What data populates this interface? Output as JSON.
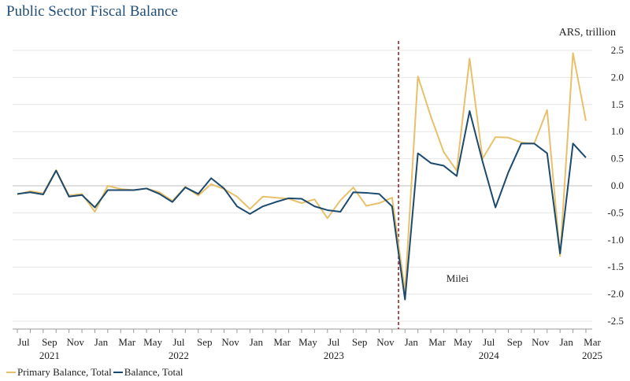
{
  "chart_data": {
    "type": "line",
    "title": "Public Sector Fiscal Balance",
    "ylabel": "ARS, trillion",
    "ylim": [
      -2.5,
      2.5
    ],
    "yticks": [
      "2.5",
      "2.0",
      "1.5",
      "1.0",
      "0.5",
      "0.0",
      "-0.5",
      "-1.0",
      "-1.5",
      "-2.0",
      "-2.5"
    ],
    "ytick_values": [
      2.5,
      2.0,
      1.5,
      1.0,
      0.5,
      0.0,
      -0.5,
      -1.0,
      -1.5,
      -2.0,
      -2.5
    ],
    "x_month_labels": [
      {
        "i": 0,
        "label": "Jul"
      },
      {
        "i": 2,
        "label": "Sep"
      },
      {
        "i": 4,
        "label": "Nov"
      },
      {
        "i": 6,
        "label": "Jan"
      },
      {
        "i": 8,
        "label": "Mar"
      },
      {
        "i": 10,
        "label": "May"
      },
      {
        "i": 12,
        "label": "Jul"
      },
      {
        "i": 14,
        "label": "Sep"
      },
      {
        "i": 16,
        "label": "Nov"
      },
      {
        "i": 18,
        "label": "Jan"
      },
      {
        "i": 20,
        "label": "Mar"
      },
      {
        "i": 22,
        "label": "May"
      },
      {
        "i": 24,
        "label": "Jul"
      },
      {
        "i": 26,
        "label": "Sep"
      },
      {
        "i": 28,
        "label": "Nov"
      },
      {
        "i": 30,
        "label": "Jan"
      },
      {
        "i": 32,
        "label": "Mar"
      },
      {
        "i": 34,
        "label": "May"
      },
      {
        "i": 36,
        "label": "Jul"
      },
      {
        "i": 38,
        "label": "Sep"
      },
      {
        "i": 40,
        "label": "Nov"
      },
      {
        "i": 42,
        "label": "Jan"
      },
      {
        "i": 44,
        "label": "Mar"
      }
    ],
    "x_year_labels": [
      {
        "i": 2,
        "label": "2021"
      },
      {
        "i": 12,
        "label": "2022"
      },
      {
        "i": 24,
        "label": "2023"
      },
      {
        "i": 36,
        "label": "2024"
      },
      {
        "i": 44,
        "label": "2025"
      }
    ],
    "series": [
      {
        "name": "Primary Balance, Total",
        "color": "#e8c06a",
        "values": [
          -0.16,
          -0.1,
          -0.14,
          0.29,
          -0.18,
          -0.15,
          -0.48,
          0.0,
          -0.06,
          -0.08,
          -0.05,
          -0.12,
          -0.28,
          -0.02,
          -0.18,
          0.03,
          -0.06,
          -0.2,
          -0.43,
          -0.2,
          -0.22,
          -0.24,
          -0.32,
          -0.25,
          -0.6,
          -0.27,
          -0.03,
          -0.37,
          -0.32,
          -0.22,
          -1.95,
          2.02,
          1.28,
          0.62,
          0.28,
          2.35,
          0.5,
          0.9,
          0.89,
          0.8,
          0.78,
          1.4,
          -1.3,
          2.45,
          1.2
        ]
      },
      {
        "name": "Balance, Total",
        "color": "#1c4a6e",
        "values": [
          -0.15,
          -0.12,
          -0.16,
          0.28,
          -0.2,
          -0.17,
          -0.4,
          -0.08,
          -0.08,
          -0.08,
          -0.05,
          -0.15,
          -0.3,
          -0.03,
          -0.15,
          0.14,
          -0.05,
          -0.38,
          -0.52,
          -0.38,
          -0.3,
          -0.23,
          -0.24,
          -0.38,
          -0.45,
          -0.48,
          -0.12,
          -0.13,
          -0.15,
          -0.38,
          -2.1,
          0.6,
          0.42,
          0.37,
          0.18,
          1.38,
          0.45,
          -0.4,
          0.25,
          0.78,
          0.78,
          0.6,
          -1.25,
          0.78,
          0.52
        ]
      }
    ],
    "annotation": {
      "text": "Milei",
      "x_index": 29.5,
      "y": -1.7
    }
  },
  "legend": {
    "item1": "Primary Balance, Total",
    "item2": "Balance, Total"
  }
}
